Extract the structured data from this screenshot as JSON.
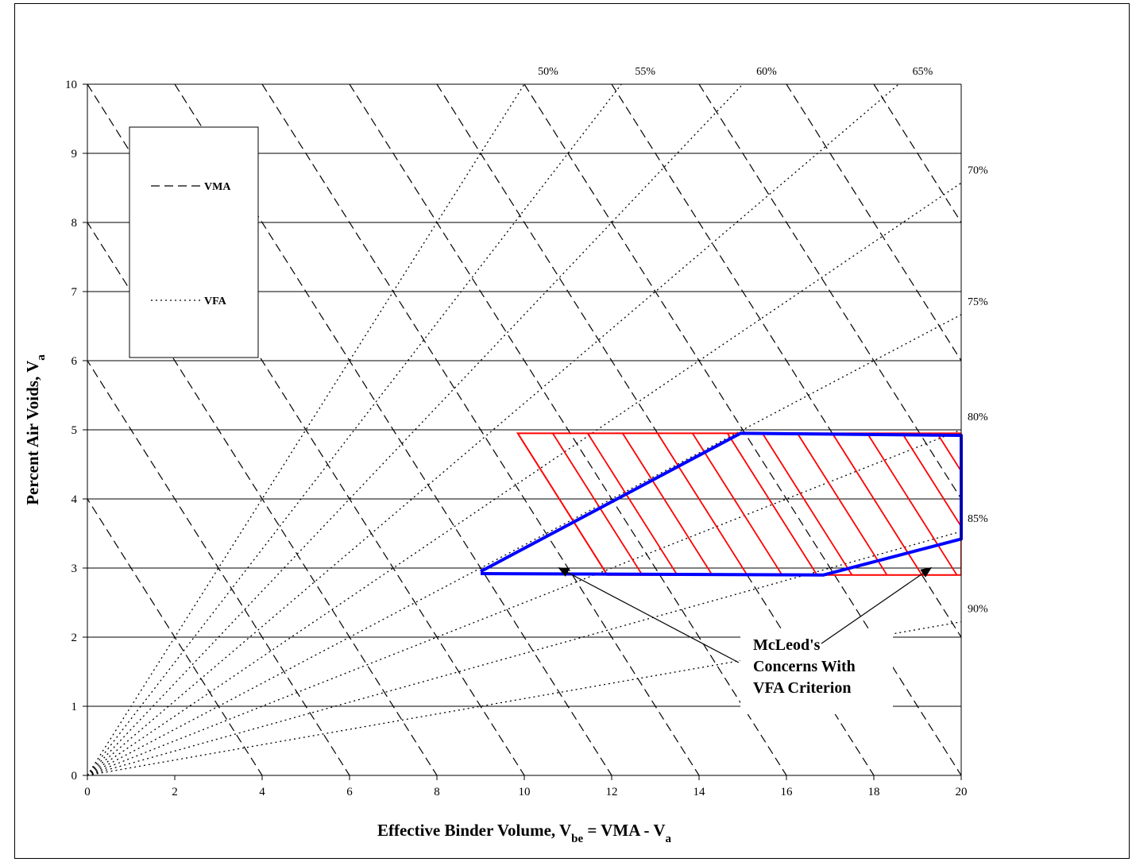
{
  "chart_data": {
    "type": "line",
    "xlabel": {
      "main": "Effective Binder Volume,  V",
      "sub": "be",
      "tail": " = VMA - V",
      "tail_sub": "a"
    },
    "ylabel": {
      "main": "Percent Air Voids, V",
      "sub": "a"
    },
    "xlim": [
      0,
      20
    ],
    "ylim": [
      0,
      10
    ],
    "x_ticks": [
      "0",
      "2",
      "4",
      "6",
      "8",
      "10",
      "12",
      "14",
      "16",
      "18",
      "20"
    ],
    "y_ticks": [
      "0",
      "1",
      "2",
      "3",
      "4",
      "5",
      "6",
      "7",
      "8",
      "9",
      "10"
    ],
    "grid": "horizontal",
    "legend": {
      "placement": "top-left",
      "entries": [
        {
          "label": "VMA",
          "style": "dashed"
        },
        {
          "label": "VFA",
          "style": "dotted"
        }
      ]
    },
    "vma_lines": [
      4,
      6,
      8,
      10,
      12,
      14,
      16,
      18,
      20,
      22,
      24,
      26,
      28,
      30
    ],
    "vfa_lines": [
      {
        "value": 50,
        "label": "50%"
      },
      {
        "value": 55,
        "label": "55%"
      },
      {
        "value": 60,
        "label": "60%"
      },
      {
        "value": 65,
        "label": "65%"
      },
      {
        "value": 70,
        "label": "70%"
      },
      {
        "value": 75,
        "label": "75%"
      },
      {
        "value": 80,
        "label": "80%"
      },
      {
        "value": 85,
        "label": "85%"
      },
      {
        "value": 90,
        "label": "90%"
      }
    ],
    "criteria_region": {
      "color": "#ff0000",
      "va_range": [
        2.9,
        4.95
      ],
      "vma_min": 14.8,
      "hatch_vma_step": 0.8
    },
    "vfa_boundary": {
      "color": "#0000ff",
      "points": [
        [
          9.0,
          2.95
        ],
        [
          14.95,
          4.95
        ],
        [
          20.0,
          4.92
        ],
        [
          20.0,
          3.42
        ],
        [
          16.85,
          2.9
        ],
        [
          9.0,
          2.92
        ]
      ]
    },
    "annotation": {
      "lines": [
        "McLeod's",
        "Concerns With",
        "VFA Criterion"
      ],
      "arrow_targets": [
        [
          10.8,
          3.0
        ],
        [
          19.3,
          3.0
        ]
      ]
    }
  },
  "colors": {
    "region": "#ff0000",
    "boundary": "#0000ff",
    "grid": "#000000"
  }
}
